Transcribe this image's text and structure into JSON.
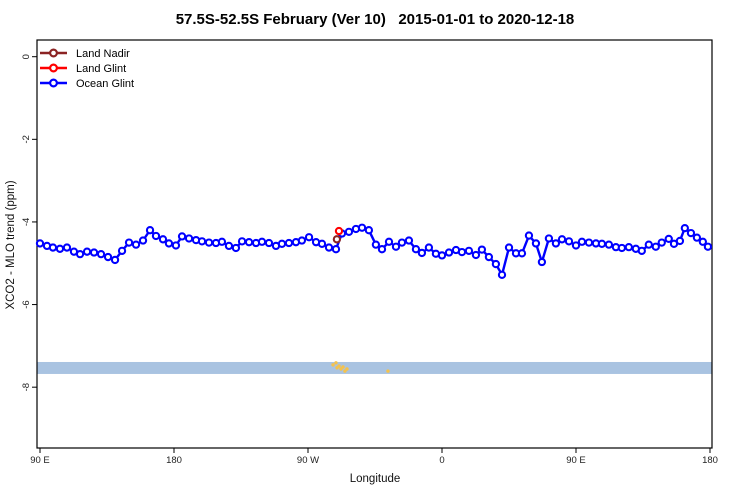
{
  "chart_data": {
    "type": "line",
    "title": "57.5S-52.5S February (Ver 10)   2015-01-01 to 2020-12-18",
    "xlabel": "Longitude",
    "ylabel": "XCO2 - MLO trend (ppm)",
    "axis_note": "x axis is longitude wrapping past 180; positions below are degrees along the axis starting at 90E (90=90E, 180=180, 270=90W, 360=0, 450=90E, 540=180)",
    "xlim": [
      88,
      541.5
    ],
    "ylim": [
      0.5,
      -9.6
    ],
    "x_ticks": {
      "positions": [
        90,
        180,
        270,
        360,
        450,
        540
      ],
      "labels": [
        "90 E",
        "180",
        "90 W",
        "0",
        "90 E",
        "180"
      ]
    },
    "y_ticks": {
      "positions": [
        0,
        -2,
        -4,
        -6,
        -8
      ],
      "labels": [
        "0",
        "-2",
        "-4",
        "-6",
        "-8"
      ]
    },
    "band": {
      "y_from": -7.68,
      "y_to": -7.39,
      "color": "#a9c3e1"
    },
    "legend": {
      "position": "top-left",
      "entries": [
        "Land Nadir",
        "Land Glint",
        "Ocean Glint"
      ]
    },
    "series": [
      {
        "name": "Land Nadir",
        "color": "#8b2323",
        "x": [
          289.4
        ],
        "y": [
          -4.42
        ]
      },
      {
        "name": "Land Glint",
        "color": "#ff0000",
        "x": [
          290.8
        ],
        "y": [
          -4.22
        ]
      },
      {
        "name": "Ocean Glint",
        "color": "#0000ff",
        "x": [
          90.0,
          94.7,
          98.7,
          103.4,
          108.1,
          112.8,
          116.9,
          121.6,
          126.3,
          131.0,
          135.7,
          140.4,
          145.1,
          149.8,
          154.5,
          159.2,
          163.9,
          167.9,
          172.6,
          176.6,
          181.3,
          185.4,
          190.1,
          194.8,
          198.8,
          203.5,
          208.2,
          212.2,
          216.9,
          221.6,
          225.7,
          230.4,
          235.1,
          239.1,
          243.8,
          248.5,
          252.5,
          257.2,
          261.9,
          265.9,
          270.7,
          275.4,
          279.4,
          284.1,
          288.8,
          292.8,
          297.5,
          302.2,
          306.3,
          310.9,
          315.6,
          319.7,
          324.4,
          329.1,
          333.1,
          337.8,
          342.5,
          346.5,
          351.2,
          355.9,
          360.0,
          364.7,
          369.4,
          373.4,
          378.1,
          382.8,
          386.8,
          391.5,
          396.2,
          400.3,
          405.0,
          409.7,
          413.7,
          418.4,
          423.1,
          427.1,
          431.8,
          436.5,
          440.6,
          445.3,
          450.0,
          454.0,
          458.7,
          463.4,
          467.4,
          472.1,
          476.8,
          480.8,
          485.5,
          490.2,
          494.2,
          498.9,
          503.6,
          507.6,
          512.3,
          515.8,
          519.8,
          523.1,
          527.2,
          531.2,
          535.2,
          538.6
        ],
        "y": [
          -4.52,
          -4.58,
          -4.62,
          -4.65,
          -4.62,
          -4.72,
          -4.78,
          -4.72,
          -4.74,
          -4.78,
          -4.85,
          -4.92,
          -4.7,
          -4.5,
          -4.55,
          -4.45,
          -4.2,
          -4.34,
          -4.42,
          -4.52,
          -4.57,
          -4.35,
          -4.4,
          -4.44,
          -4.47,
          -4.5,
          -4.51,
          -4.48,
          -4.58,
          -4.63,
          -4.47,
          -4.49,
          -4.51,
          -4.48,
          -4.51,
          -4.58,
          -4.53,
          -4.51,
          -4.49,
          -4.45,
          -4.37,
          -4.49,
          -4.53,
          -4.62,
          -4.66,
          -4.28,
          -4.24,
          -4.17,
          -4.14,
          -4.2,
          -4.55,
          -4.66,
          -4.48,
          -4.6,
          -4.5,
          -4.45,
          -4.66,
          -4.75,
          -4.62,
          -4.77,
          -4.81,
          -4.74,
          -4.68,
          -4.73,
          -4.7,
          -4.8,
          -4.67,
          -4.85,
          -5.02,
          -5.28,
          -4.62,
          -4.76,
          -4.76,
          -4.33,
          -4.52,
          -4.97,
          -4.4,
          -4.52,
          -4.42,
          -4.47,
          -4.57,
          -4.48,
          -4.5,
          -4.52,
          -4.53,
          -4.55,
          -4.61,
          -4.63,
          -4.61,
          -4.65,
          -4.7,
          -4.55,
          -4.6,
          -4.5,
          -4.41,
          -4.53,
          -4.46,
          -4.15,
          -4.27,
          -4.38,
          -4.48,
          -4.6
        ]
      }
    ],
    "scatter_marks": {
      "name": "small orange marks near band",
      "color": "#f5c24b",
      "x": [
        286.8,
        288.8,
        289.5,
        290.8,
        292.2,
        293.5,
        294.8,
        296.2,
        323.7
      ],
      "y": [
        -7.46,
        -7.41,
        -7.53,
        -7.49,
        -7.56,
        -7.51,
        -7.61,
        -7.56,
        -7.61
      ]
    },
    "layout": {
      "grid": "off",
      "frame": "full box",
      "legend_position": "inside top-left"
    }
  }
}
